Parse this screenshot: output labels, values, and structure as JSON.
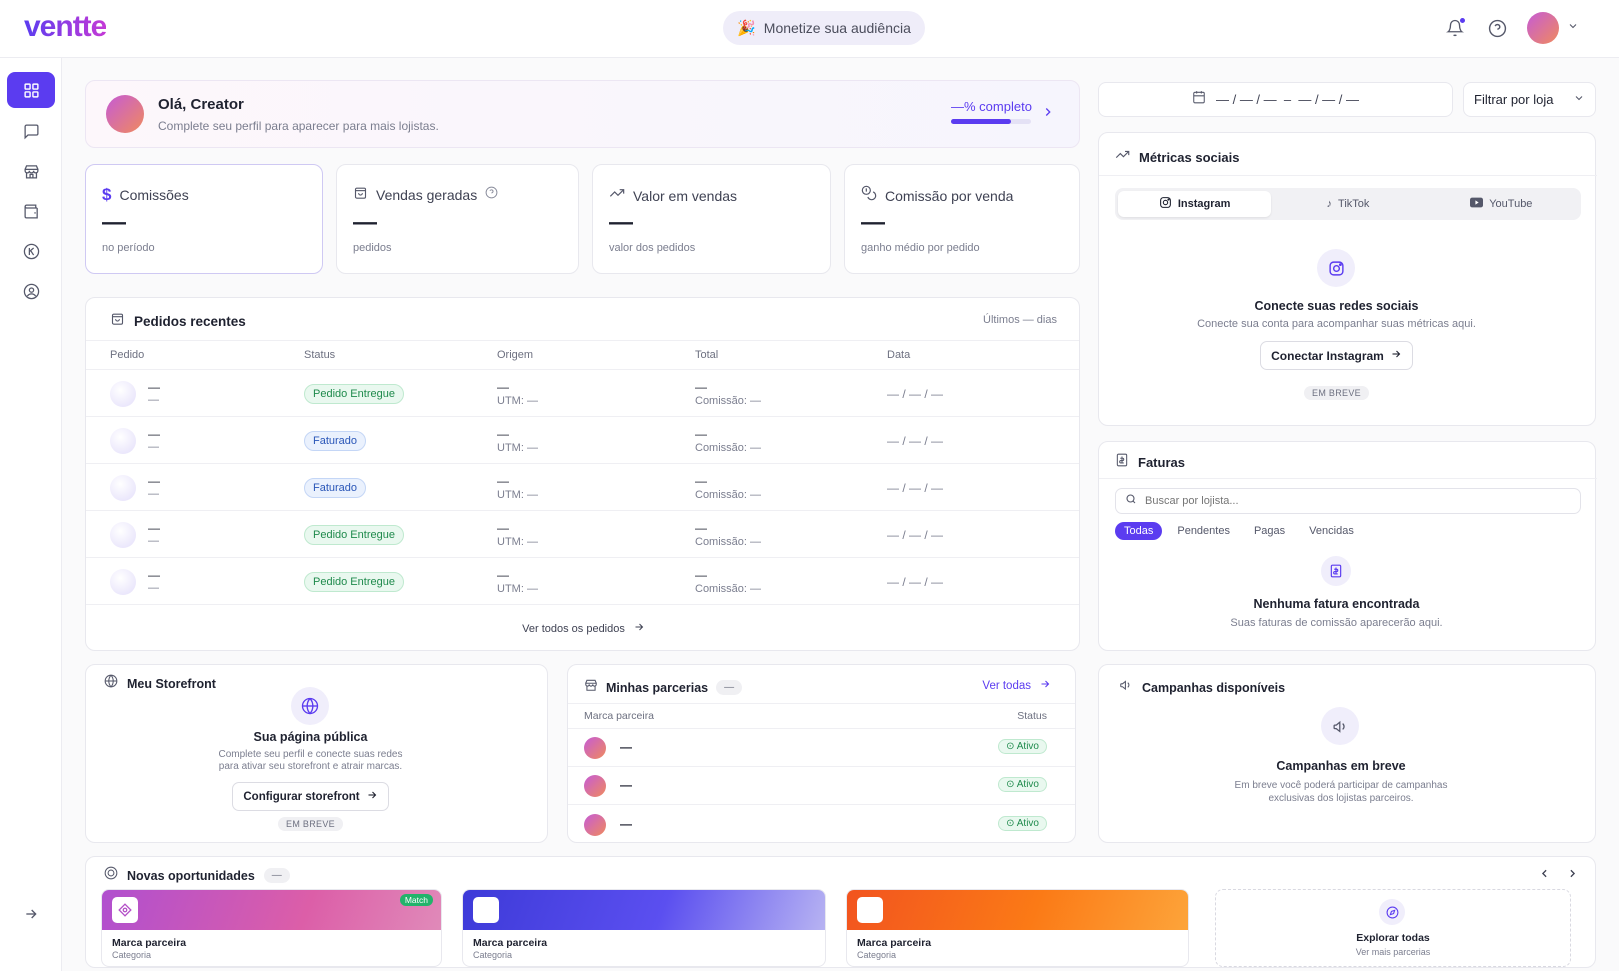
{
  "header": {
    "logo": "ventte",
    "promo": "Monetize sua audiência"
  },
  "profile": {
    "greeting": "Olá, Creator",
    "subtitle": "Complete seu perfil para aparecer para mais lojistas.",
    "progress_label": "—% completo",
    "progress": 0.75
  },
  "stats": [
    {
      "label": "Comissões",
      "value": "—",
      "sub": "no período"
    },
    {
      "label": "Vendas geradas",
      "value": "—",
      "sub": "pedidos"
    },
    {
      "label": "Valor em vendas",
      "value": "—",
      "sub": "valor dos pedidos"
    },
    {
      "label": "Comissão por venda",
      "value": "—",
      "sub": "ganho médio por pedido"
    }
  ],
  "orders": {
    "title": "Pedidos recentes",
    "period": "Últimos — dias",
    "columns": [
      "Pedido",
      "Status",
      "Origem",
      "Total",
      "Data"
    ],
    "rows": [
      {
        "name": "—",
        "sub": "—",
        "status": "Pedido Entregue",
        "origin": "—",
        "utm": "UTM: —",
        "total": "—",
        "commission": "Comissão: —",
        "date": "— / — / —"
      },
      {
        "name": "—",
        "sub": "—",
        "status": "Faturado",
        "origin": "—",
        "utm": "UTM: —",
        "total": "—",
        "commission": "Comissão: —",
        "date": "— / — / —"
      },
      {
        "name": "—",
        "sub": "—",
        "status": "Faturado",
        "origin": "—",
        "utm": "UTM: —",
        "total": "—",
        "commission": "Comissão: —",
        "date": "— / — / —"
      },
      {
        "name": "—",
        "sub": "—",
        "status": "Pedido Entregue",
        "origin": "—",
        "utm": "UTM: —",
        "total": "—",
        "commission": "Comissão: —",
        "date": "— / — / —"
      },
      {
        "name": "—",
        "sub": "—",
        "status": "Pedido Entregue",
        "origin": "—",
        "utm": "UTM: —",
        "total": "—",
        "commission": "Comissão: —",
        "date": "— / — / —"
      }
    ],
    "view_all": "Ver todos os pedidos"
  },
  "filters": {
    "date_range": "— / — / —  –  — / — / —",
    "store": "Filtrar por loja"
  },
  "social": {
    "title": "Métricas sociais",
    "tabs": [
      "Instagram",
      "TikTok",
      "YouTube"
    ],
    "connect_title": "Conecte suas redes sociais",
    "connect_sub": "Conecte sua conta para acompanhar suas métricas aqui.",
    "connect_button": "Conectar Instagram",
    "soon": "EM BREVE"
  },
  "invoices": {
    "title": "Faturas",
    "search_placeholder": "Buscar por lojista...",
    "tabs": [
      "Todas",
      "Pendentes",
      "Pagas",
      "Vencidas"
    ],
    "empty_title": "Nenhuma fatura encontrada",
    "empty_sub": "Suas faturas de comissão aparecerão aqui."
  },
  "storefront": {
    "title": "Meu Storefront",
    "heading": "Sua página pública",
    "text1": "Complete seu perfil e conecte suas redes",
    "text2": "para ativar seu storefront e atrair marcas.",
    "button": "Configurar storefront",
    "soon": "EM BREVE"
  },
  "partners": {
    "title": "Minhas parcerias",
    "count": "—",
    "view_all": "Ver todas",
    "col_brand": "Marca parceira",
    "col_status": "Status",
    "rows": [
      {
        "name": "—",
        "status": "Ativo"
      },
      {
        "name": "—",
        "status": "Ativo"
      },
      {
        "name": "—",
        "status": "Ativo"
      }
    ]
  },
  "campaigns": {
    "title": "Campanhas disponíveis",
    "heading": "Campanhas em breve",
    "text1": "Em breve você poderá participar de campanhas",
    "text2": "exclusivas dos lojistas parceiros."
  },
  "opportunities": {
    "title": "Novas oportunidades",
    "count": "—",
    "items": [
      {
        "brand": "Marca parceira",
        "category": "Categoria",
        "badge": "Match"
      },
      {
        "brand": "Marca parceira",
        "category": "Categoria"
      },
      {
        "brand": "Marca parceira",
        "category": "Categoria"
      }
    ],
    "explore_title": "Explorar todas",
    "explore_sub": "Ver mais parcerias"
  }
}
